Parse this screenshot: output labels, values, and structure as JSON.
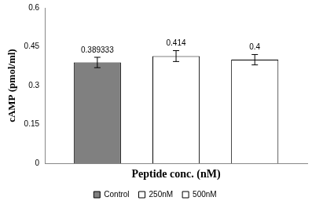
{
  "chart_data": {
    "type": "bar",
    "x_label": "Peptide conc. (nM)",
    "y_label": "cAMP (pmol/ml)",
    "categories": [
      null
    ],
    "series": [
      {
        "name": "Control",
        "color": "#808080",
        "values": [
          0.389333
        ],
        "errors": [
          0.02
        ]
      },
      {
        "name": "250nM",
        "color": "#ffffff",
        "values": [
          0.414
        ],
        "errors": [
          0.021
        ]
      },
      {
        "name": "500nM",
        "color": "#ffffff",
        "values": [
          0.4
        ],
        "errors": [
          0.02
        ]
      }
    ],
    "ylim": [
      0,
      0.6
    ],
    "yticks": [
      0,
      0.15,
      0.3,
      0.45,
      0.6
    ],
    "grid": false,
    "legend": "bottom",
    "data_labels": true,
    "tick_labels": "y"
  }
}
